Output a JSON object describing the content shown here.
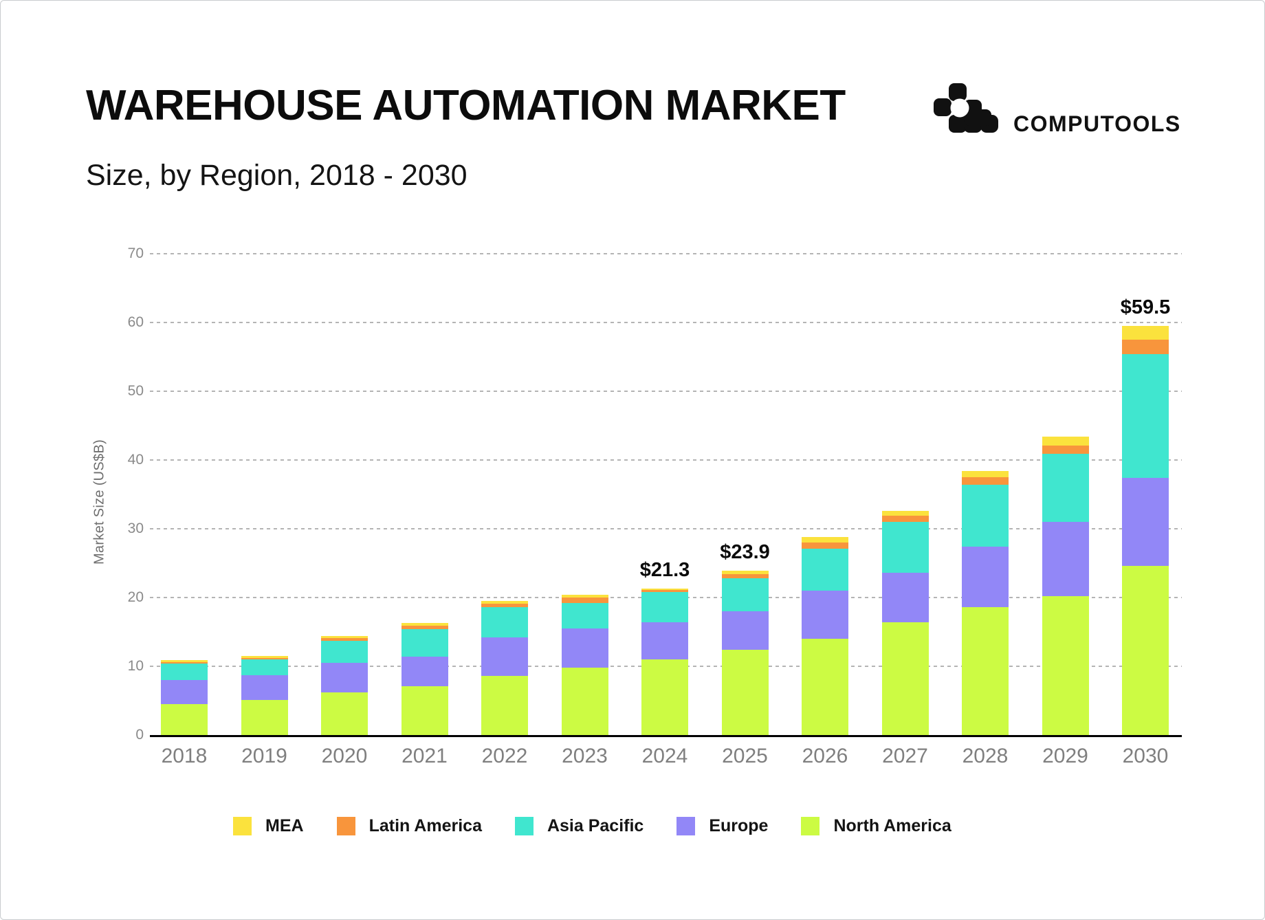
{
  "header": {
    "title": "WAREHOUSE AUTOMATION MARKET",
    "subtitle": "Size, by Region, 2018 - 2030",
    "brand": "COMPUTOOLS"
  },
  "colors": {
    "north_america": "#ccfb43",
    "europe": "#9287f7",
    "asia_pacific": "#40e6cf",
    "latin_america": "#f8953c",
    "mea": "#fbe23d",
    "axis_line": "#000000",
    "gridline": "#b4b4b4",
    "tick_text": "#7f7f7f",
    "title_text": "#0c0c0c"
  },
  "chart_data": {
    "type": "bar",
    "stacked": true,
    "title": "WAREHOUSE AUTOMATION MARKET",
    "subtitle": "Size, by Region, 2018 - 2030",
    "categories": [
      "2018",
      "2019",
      "2020",
      "2021",
      "2022",
      "2023",
      "2024",
      "2025",
      "2026",
      "2027",
      "2028",
      "2029",
      "2030"
    ],
    "series": [
      {
        "name": "North America",
        "color": "#ccfb43",
        "values": [
          4.5,
          5.1,
          6.2,
          7.1,
          8.6,
          9.8,
          11.0,
          12.4,
          14.0,
          16.4,
          18.6,
          20.2,
          24.6
        ]
      },
      {
        "name": "Europe",
        "color": "#9287f7",
        "values": [
          3.5,
          3.6,
          4.3,
          4.3,
          5.6,
          5.7,
          5.4,
          5.6,
          7.0,
          7.2,
          8.8,
          10.8,
          12.8
        ]
      },
      {
        "name": "Asia Pacific",
        "color": "#40e6cf",
        "values": [
          2.4,
          2.3,
          3.2,
          4.0,
          4.4,
          3.7,
          4.4,
          4.8,
          6.1,
          7.4,
          9.0,
          9.9,
          18.0
        ]
      },
      {
        "name": "Latin America",
        "color": "#f8953c",
        "values": [
          0.25,
          0.25,
          0.4,
          0.55,
          0.55,
          0.8,
          0.3,
          0.6,
          0.9,
          0.9,
          1.1,
          1.2,
          2.1
        ]
      },
      {
        "name": "MEA",
        "color": "#fbe23d",
        "values": [
          0.25,
          0.25,
          0.3,
          0.35,
          0.4,
          0.4,
          0.2,
          0.5,
          0.8,
          0.7,
          0.9,
          1.3,
          2.0
        ]
      }
    ],
    "annotations": [
      {
        "category": "2024",
        "label": "$21.3"
      },
      {
        "category": "2025",
        "label": "$23.9"
      },
      {
        "category": "2030",
        "label": "$59.5"
      }
    ],
    "xlabel": "",
    "ylabel": "Market Size (US$B)",
    "yticks": [
      0,
      10,
      20,
      30,
      40,
      50,
      60,
      70
    ],
    "ylim": [
      0,
      70
    ],
    "grid": "horizontal-dashed",
    "legend_position": "bottom",
    "legend_order": [
      "MEA",
      "Latin America",
      "Asia Pacific",
      "Europe",
      "North America"
    ]
  }
}
